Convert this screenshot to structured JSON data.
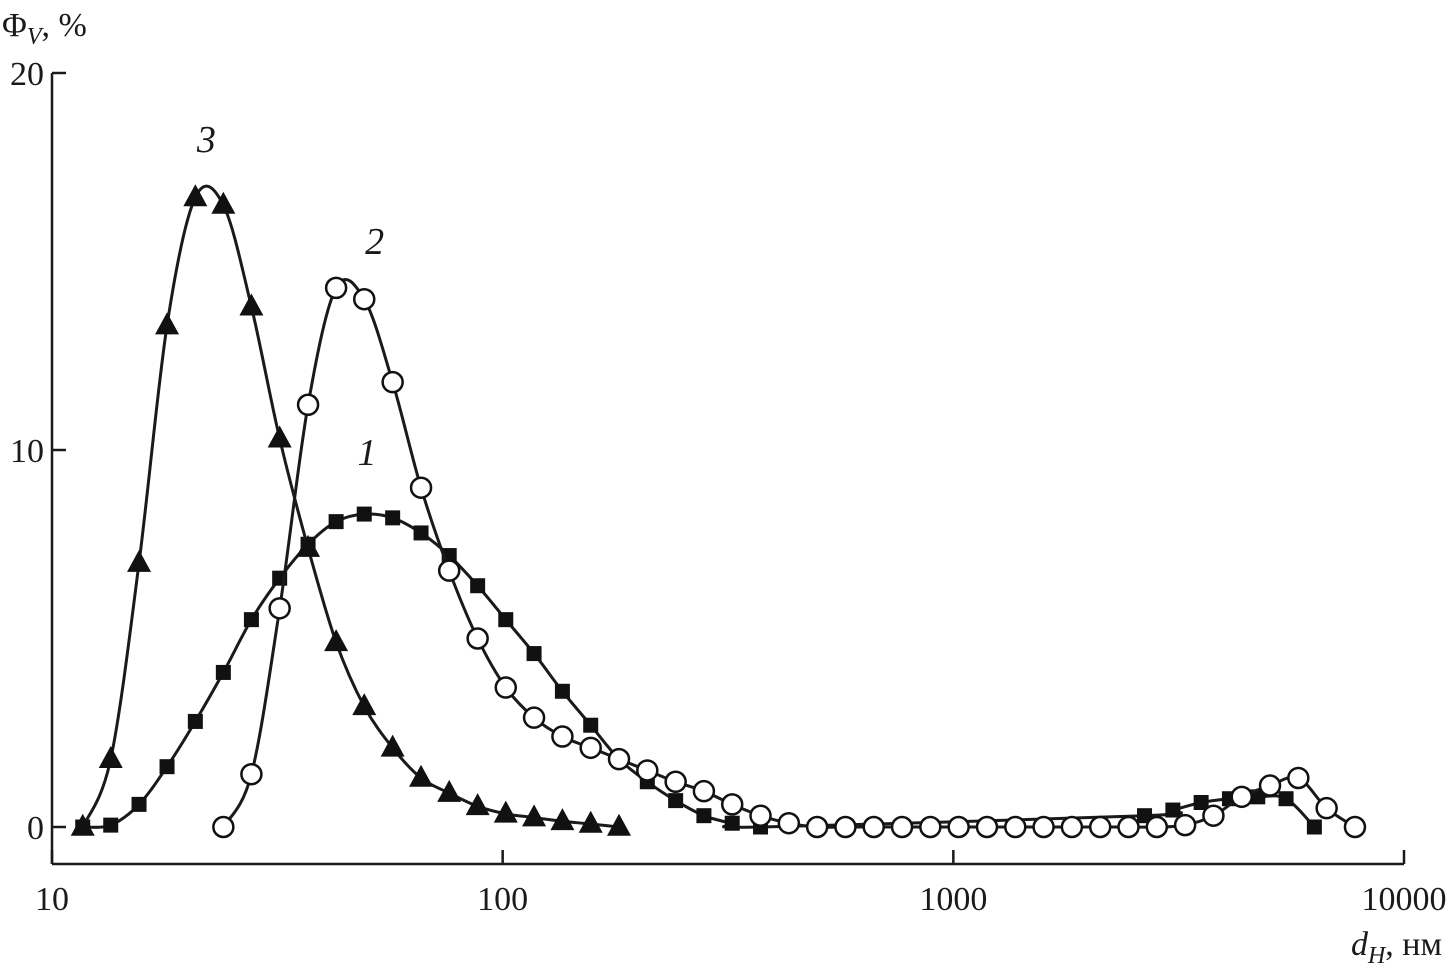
{
  "chart_data": {
    "type": "line",
    "xscale": "log",
    "xlim": [
      10,
      10000
    ],
    "ylim": [
      -1,
      20
    ],
    "x_ticks": [
      10,
      100,
      1000,
      10000
    ],
    "x_tick_labels": [
      "10",
      "100",
      "1000",
      "10000"
    ],
    "y_ticks": [
      0,
      10,
      20
    ],
    "y_tick_labels": [
      "0",
      "10",
      "20"
    ],
    "ylabel": {
      "main": "Φ",
      "sub": "V",
      "rest": ", %"
    },
    "xlabel": {
      "main": "d",
      "sub": "H",
      "rest": ", нм"
    },
    "grid": false,
    "series": [
      {
        "label": "1",
        "marker": "square",
        "points": [
          [
            11.7,
            0.0
          ],
          [
            13.5,
            0.05
          ],
          [
            15.6,
            0.6
          ],
          [
            18.0,
            1.6
          ],
          [
            20.8,
            2.8
          ],
          [
            24.0,
            4.1
          ],
          [
            27.7,
            5.5
          ],
          [
            32.0,
            6.6
          ],
          [
            37.0,
            7.5
          ],
          [
            42.7,
            8.1
          ],
          [
            49.3,
            8.3
          ],
          [
            57.0,
            8.2
          ],
          [
            65.9,
            7.8
          ],
          [
            76.1,
            7.2
          ],
          [
            88.0,
            6.4
          ],
          [
            101.6,
            5.5
          ],
          [
            117.4,
            4.6
          ],
          [
            135.7,
            3.6
          ],
          [
            156.8,
            2.7
          ],
          [
            181.2,
            1.8
          ],
          [
            209.4,
            1.2
          ],
          [
            242.0,
            0.7
          ],
          [
            279.6,
            0.3
          ],
          [
            323.1,
            0.1
          ],
          [
            373.4,
            0.0
          ],
          [
            2656,
            0.3
          ],
          [
            3070,
            0.45
          ],
          [
            3547,
            0.65
          ],
          [
            4099,
            0.75
          ],
          [
            4737,
            0.8
          ],
          [
            5474,
            0.75
          ],
          [
            6326,
            0.0
          ]
        ],
        "label_at": [
          50,
          9.6
        ]
      },
      {
        "label": "2",
        "marker": "circle",
        "points": [
          [
            24,
            0.0
          ],
          [
            27.7,
            1.4
          ],
          [
            32.0,
            5.8
          ],
          [
            37.0,
            11.2
          ],
          [
            42.7,
            14.3
          ],
          [
            49.3,
            14.0
          ],
          [
            57.0,
            11.8
          ],
          [
            65.9,
            9.0
          ],
          [
            76.1,
            6.8
          ],
          [
            88.0,
            5.0
          ],
          [
            101.6,
            3.7
          ],
          [
            117.4,
            2.9
          ],
          [
            135.7,
            2.4
          ],
          [
            156.8,
            2.1
          ],
          [
            181.2,
            1.8
          ],
          [
            209.4,
            1.5
          ],
          [
            242.0,
            1.2
          ],
          [
            279.6,
            0.95
          ],
          [
            323.1,
            0.6
          ],
          [
            373.4,
            0.3
          ],
          [
            431.5,
            0.1
          ],
          [
            498.6,
            0.0
          ],
          [
            576.2,
            0.0
          ],
          [
            665.9,
            0.0
          ],
          [
            769.5,
            0.0
          ],
          [
            889.2,
            0.0
          ],
          [
            1027.6,
            0.0
          ],
          [
            1187.5,
            0.0
          ],
          [
            1372.3,
            0.0
          ],
          [
            1585.8,
            0.0
          ],
          [
            1832.6,
            0.0
          ],
          [
            2117.8,
            0.0
          ],
          [
            2447.3,
            0.0
          ],
          [
            2828.1,
            0.0
          ],
          [
            3268.2,
            0.05
          ],
          [
            3776.8,
            0.3
          ],
          [
            4364.4,
            0.8
          ],
          [
            5043.5,
            1.1
          ],
          [
            5828.3,
            1.3
          ],
          [
            6735.2,
            0.5
          ],
          [
            7783.3,
            0.0
          ]
        ],
        "label_at": [
          52,
          15.2
        ]
      },
      {
        "label": "3",
        "marker": "triangle",
        "points": [
          [
            11.7,
            0.0
          ],
          [
            13.5,
            1.8
          ],
          [
            15.6,
            7.0
          ],
          [
            18.0,
            13.3
          ],
          [
            20.8,
            16.7
          ],
          [
            24.0,
            16.5
          ],
          [
            27.7,
            13.8
          ],
          [
            32.0,
            10.3
          ],
          [
            37.0,
            7.4
          ],
          [
            42.7,
            4.9
          ],
          [
            49.3,
            3.2
          ],
          [
            57.0,
            2.1
          ],
          [
            65.9,
            1.3
          ],
          [
            76.1,
            0.9
          ],
          [
            88.0,
            0.55
          ],
          [
            101.6,
            0.35
          ],
          [
            117.4,
            0.25
          ],
          [
            135.7,
            0.15
          ],
          [
            156.8,
            0.08
          ],
          [
            181.2,
            0.0
          ]
        ],
        "label_at": [
          22,
          17.9
        ]
      }
    ]
  }
}
